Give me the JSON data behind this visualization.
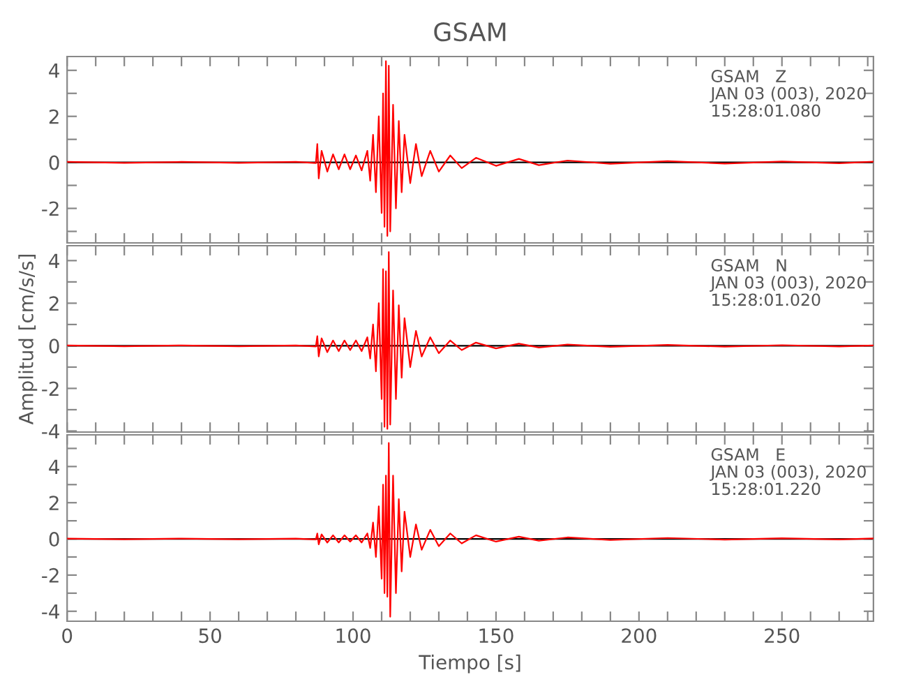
{
  "chart_data": [
    {
      "type": "line",
      "title": "GSAM",
      "x": [
        0,
        20,
        40,
        60,
        80,
        87,
        87.5,
        88,
        89,
        91,
        93,
        95,
        97,
        99,
        101,
        103,
        105,
        106,
        107,
        108,
        109,
        110,
        110.5,
        111,
        111.5,
        112,
        112.5,
        113,
        114,
        115,
        116,
        117,
        118,
        120,
        122,
        124,
        127,
        130,
        134,
        138,
        143,
        150,
        158,
        165,
        175,
        190,
        210,
        230,
        250,
        270,
        282
      ],
      "series": [
        {
          "color": "#ff0000",
          "values": [
            0.02,
            -0.02,
            0.02,
            -0.02,
            0.02,
            -0.03,
            0.8,
            -0.7,
            0.5,
            -0.4,
            0.35,
            -0.3,
            0.35,
            -0.3,
            0.3,
            -0.35,
            0.5,
            -0.8,
            1.2,
            -1.3,
            2.0,
            -2.2,
            3.0,
            -2.8,
            4.4,
            -3.2,
            4.2,
            -3.0,
            2.5,
            -2.0,
            1.8,
            -1.3,
            1.2,
            -0.9,
            0.8,
            -0.6,
            0.5,
            -0.4,
            0.3,
            -0.25,
            0.2,
            -0.15,
            0.15,
            -0.12,
            0.08,
            -0.06,
            0.05,
            -0.05,
            0.04,
            -0.04,
            0.03
          ]
        }
      ],
      "xlim": [
        0,
        282
      ],
      "xticks": [
        {
          "value": 0,
          "label": null
        },
        {
          "value": 10,
          "label": null
        },
        {
          "value": 20,
          "label": null
        },
        {
          "value": 30,
          "label": null
        },
        {
          "value": 40,
          "label": null
        },
        {
          "value": 50,
          "label": null
        },
        {
          "value": 60,
          "label": null
        },
        {
          "value": 70,
          "label": null
        },
        {
          "value": 80,
          "label": null
        },
        {
          "value": 90,
          "label": null
        },
        {
          "value": 100,
          "label": null
        },
        {
          "value": 110,
          "label": null
        },
        {
          "value": 120,
          "label": null
        },
        {
          "value": 130,
          "label": null
        },
        {
          "value": 140,
          "label": null
        },
        {
          "value": 150,
          "label": null
        },
        {
          "value": 160,
          "label": null
        },
        {
          "value": 170,
          "label": null
        },
        {
          "value": 180,
          "label": null
        },
        {
          "value": 190,
          "label": null
        },
        {
          "value": 200,
          "label": null
        },
        {
          "value": 210,
          "label": null
        },
        {
          "value": 220,
          "label": null
        },
        {
          "value": 230,
          "label": null
        },
        {
          "value": 240,
          "label": null
        },
        {
          "value": 250,
          "label": null
        },
        {
          "value": 260,
          "label": null
        },
        {
          "value": 270,
          "label": null
        },
        {
          "value": 280,
          "label": null
        }
      ],
      "ylim": [
        -3.5,
        4.6
      ],
      "yticks": [
        {
          "value": -3,
          "label": null
        },
        -2,
        {
          "value": -1,
          "label": null
        },
        0,
        {
          "value": 1,
          "label": null
        },
        2,
        {
          "value": 3,
          "label": null
        },
        4
      ],
      "tick_labels": "y",
      "ref_lines": [
        {
          "axis": "y",
          "value": 0,
          "color": "#000000"
        }
      ],
      "annotations": [
        "GSAM   Z\nJAN 03 (003), 2020\n15:28:01.080"
      ]
    },
    {
      "type": "line",
      "ylabel": "Amplitud [cm/s/s]",
      "x": [
        0,
        20,
        40,
        60,
        80,
        87,
        87.5,
        88,
        89,
        91,
        93,
        95,
        97,
        99,
        101,
        103,
        105,
        106,
        107,
        108,
        109,
        110,
        110.5,
        111,
        111.5,
        112,
        112.5,
        113,
        114,
        115,
        116,
        117,
        118,
        120,
        122,
        124,
        127,
        130,
        134,
        138,
        143,
        150,
        158,
        165,
        175,
        190,
        210,
        230,
        250,
        270,
        282
      ],
      "series": [
        {
          "color": "#ff0000",
          "values": [
            0.02,
            -0.02,
            0.02,
            -0.02,
            0.02,
            -0.03,
            0.45,
            -0.5,
            0.35,
            -0.3,
            0.25,
            -0.25,
            0.25,
            -0.2,
            0.25,
            -0.25,
            0.4,
            -0.6,
            1.0,
            -1.2,
            2.0,
            -2.5,
            3.6,
            -3.8,
            3.5,
            -3.9,
            4.4,
            -3.7,
            2.6,
            -2.5,
            1.9,
            -1.5,
            1.3,
            -1.0,
            0.7,
            -0.5,
            0.4,
            -0.35,
            0.25,
            -0.2,
            0.15,
            -0.12,
            0.1,
            -0.08,
            0.06,
            -0.05,
            0.04,
            -0.04,
            0.03,
            -0.03,
            0.02
          ]
        }
      ],
      "xlim": [
        0,
        282
      ],
      "xticks": [
        {
          "value": 0,
          "label": null
        },
        {
          "value": 10,
          "label": null
        },
        {
          "value": 20,
          "label": null
        },
        {
          "value": 30,
          "label": null
        },
        {
          "value": 40,
          "label": null
        },
        {
          "value": 50,
          "label": null
        },
        {
          "value": 60,
          "label": null
        },
        {
          "value": 70,
          "label": null
        },
        {
          "value": 80,
          "label": null
        },
        {
          "value": 90,
          "label": null
        },
        {
          "value": 100,
          "label": null
        },
        {
          "value": 110,
          "label": null
        },
        {
          "value": 120,
          "label": null
        },
        {
          "value": 130,
          "label": null
        },
        {
          "value": 140,
          "label": null
        },
        {
          "value": 150,
          "label": null
        },
        {
          "value": 160,
          "label": null
        },
        {
          "value": 170,
          "label": null
        },
        {
          "value": 180,
          "label": null
        },
        {
          "value": 190,
          "label": null
        },
        {
          "value": 200,
          "label": null
        },
        {
          "value": 210,
          "label": null
        },
        {
          "value": 220,
          "label": null
        },
        {
          "value": 230,
          "label": null
        },
        {
          "value": 240,
          "label": null
        },
        {
          "value": 250,
          "label": null
        },
        {
          "value": 260,
          "label": null
        },
        {
          "value": 270,
          "label": null
        },
        {
          "value": 280,
          "label": null
        }
      ],
      "ylim": [
        -4.05,
        4.7
      ],
      "yticks": [
        -4,
        {
          "value": -3,
          "label": null
        },
        -2,
        {
          "value": -1,
          "label": null
        },
        0,
        {
          "value": 1,
          "label": null
        },
        2,
        {
          "value": 3,
          "label": null
        },
        4
      ],
      "tick_labels": "y",
      "ref_lines": [
        {
          "axis": "y",
          "value": 0,
          "color": "#000000"
        }
      ],
      "annotations": [
        "GSAM   N\nJAN 03 (003), 2020\n15:28:01.020"
      ]
    },
    {
      "type": "line",
      "xlabel": "Tiempo [s]",
      "x": [
        0,
        20,
        40,
        60,
        80,
        87,
        87.5,
        88,
        89,
        91,
        93,
        95,
        97,
        99,
        101,
        103,
        105,
        106,
        107,
        108,
        109,
        110,
        110.5,
        111,
        111.5,
        112,
        112.5,
        113,
        114,
        115,
        116,
        117,
        118,
        120,
        122,
        124,
        127,
        130,
        134,
        138,
        143,
        150,
        158,
        165,
        175,
        190,
        210,
        230,
        250,
        270,
        282
      ],
      "series": [
        {
          "color": "#ff0000",
          "values": [
            0.02,
            -0.02,
            0.02,
            -0.02,
            0.02,
            -0.03,
            0.3,
            -0.3,
            0.25,
            -0.2,
            0.2,
            -0.2,
            0.2,
            -0.15,
            0.2,
            -0.2,
            0.3,
            -0.5,
            0.9,
            -1.0,
            1.8,
            -2.2,
            3.0,
            -3.0,
            3.5,
            -3.2,
            5.3,
            -4.3,
            3.5,
            -3.0,
            2.2,
            -1.8,
            1.5,
            -1.0,
            0.8,
            -0.6,
            0.5,
            -0.4,
            0.3,
            -0.25,
            0.2,
            -0.15,
            0.12,
            -0.1,
            0.08,
            -0.06,
            0.05,
            -0.04,
            0.04,
            -0.03,
            0.03
          ]
        }
      ],
      "xlim": [
        0,
        282
      ],
      "xticks": [
        0,
        {
          "value": 10,
          "label": null
        },
        {
          "value": 20,
          "label": null
        },
        {
          "value": 30,
          "label": null
        },
        {
          "value": 40,
          "label": null
        },
        50,
        {
          "value": 60,
          "label": null
        },
        {
          "value": 70,
          "label": null
        },
        {
          "value": 80,
          "label": null
        },
        {
          "value": 90,
          "label": null
        },
        100,
        {
          "value": 110,
          "label": null
        },
        {
          "value": 120,
          "label": null
        },
        {
          "value": 130,
          "label": null
        },
        {
          "value": 140,
          "label": null
        },
        150,
        {
          "value": 160,
          "label": null
        },
        {
          "value": 170,
          "label": null
        },
        {
          "value": 180,
          "label": null
        },
        {
          "value": 190,
          "label": null
        },
        200,
        {
          "value": 210,
          "label": null
        },
        {
          "value": 220,
          "label": null
        },
        {
          "value": 230,
          "label": null
        },
        {
          "value": 240,
          "label": null
        },
        250,
        {
          "value": 260,
          "label": null
        },
        {
          "value": 270,
          "label": null
        },
        {
          "value": 280,
          "label": null
        }
      ],
      "ylim": [
        -4.55,
        5.75
      ],
      "yticks": [
        -4,
        {
          "value": -3,
          "label": null
        },
        -2,
        {
          "value": -1,
          "label": null
        },
        0,
        {
          "value": 1,
          "label": null
        },
        2,
        {
          "value": 3,
          "label": null
        },
        4,
        {
          "value": 5,
          "label": null
        }
      ],
      "ref_lines": [
        {
          "axis": "y",
          "value": 0,
          "color": "#000000"
        }
      ],
      "annotations": [
        "GSAM   E\nJAN 03 (003), 2020\n15:28:01.220"
      ]
    }
  ]
}
